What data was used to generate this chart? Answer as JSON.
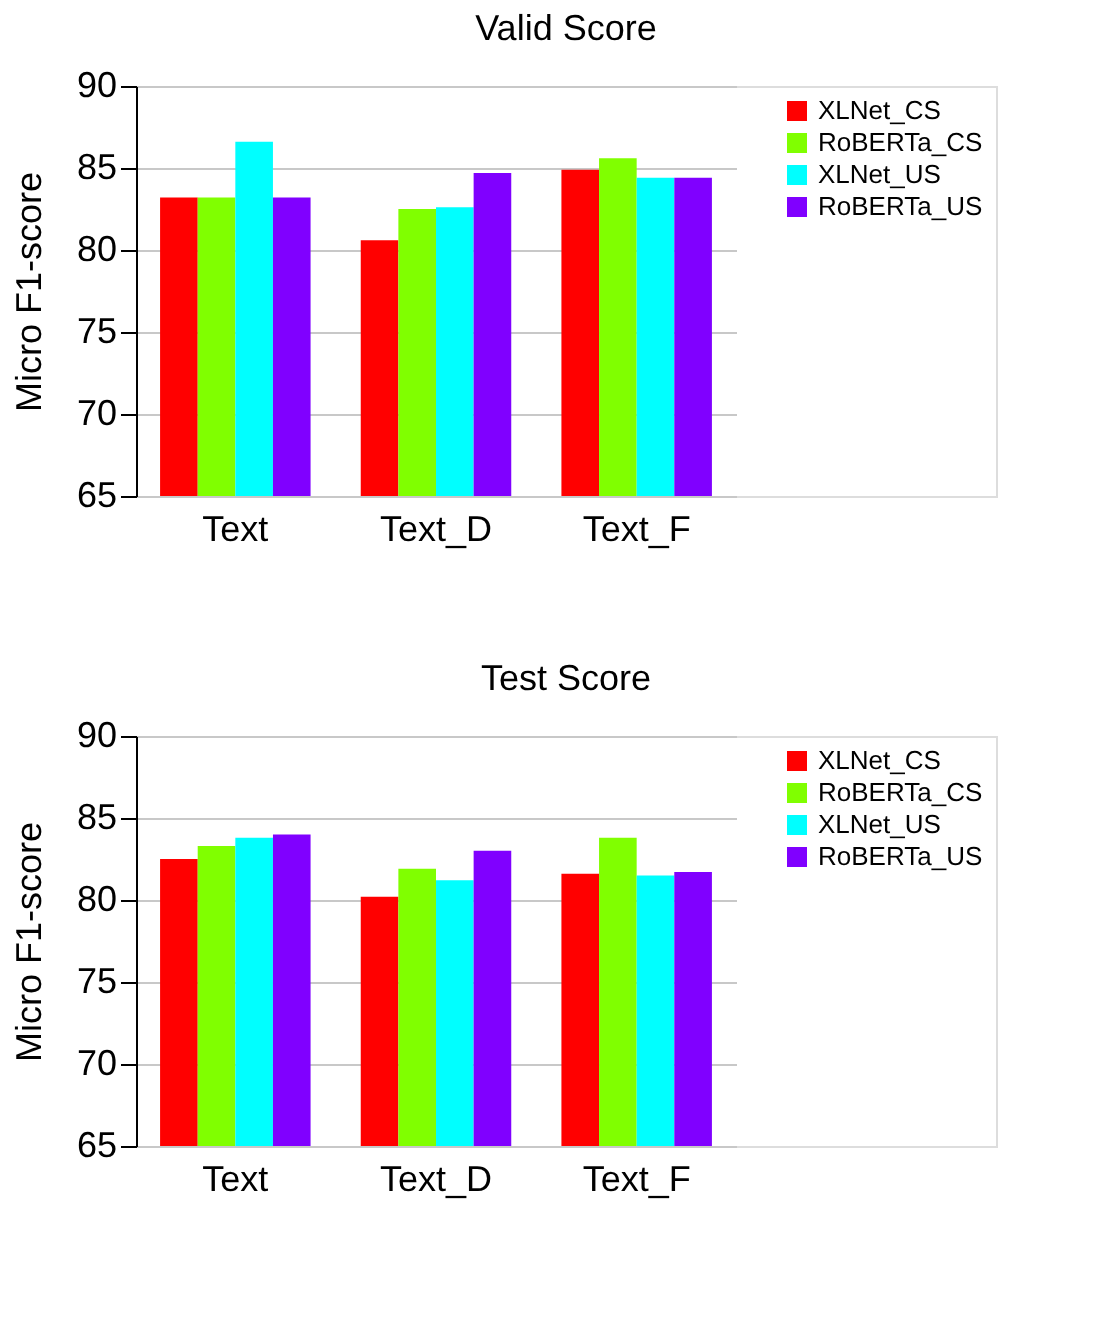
{
  "chart_data": [
    {
      "type": "bar",
      "title": "Valid Score",
      "ylabel": "Micro F1-score",
      "categories": [
        "Text",
        "Text_D",
        "Text_F"
      ],
      "ylim": [
        65,
        90
      ],
      "yticks": [
        65,
        70,
        75,
        80,
        85,
        90
      ],
      "grid": "y",
      "legend": "top right",
      "series": [
        {
          "name": "XLNet_CS",
          "color": "#ff0000",
          "values": [
            83.2,
            80.6,
            84.9
          ]
        },
        {
          "name": "RoBERTa_CS",
          "color": "#80ff00",
          "values": [
            83.2,
            82.5,
            85.6
          ]
        },
        {
          "name": "XLNet_US",
          "color": "#00ffff",
          "values": [
            86.6,
            82.6,
            84.4
          ]
        },
        {
          "name": "RoBERTa_US",
          "color": "#8000ff",
          "values": [
            83.2,
            84.7,
            84.4
          ]
        }
      ]
    },
    {
      "type": "bar",
      "title": "Test Score",
      "ylabel": "Micro F1-score",
      "categories": [
        "Text",
        "Text_D",
        "Text_F"
      ],
      "ylim": [
        65,
        90
      ],
      "yticks": [
        65,
        70,
        75,
        80,
        85,
        90
      ],
      "grid": "y",
      "legend": "top right",
      "series": [
        {
          "name": "XLNet_CS",
          "color": "#ff0000",
          "values": [
            82.5,
            80.2,
            81.6
          ]
        },
        {
          "name": "RoBERTa_CS",
          "color": "#80ff00",
          "values": [
            83.3,
            81.9,
            83.8
          ]
        },
        {
          "name": "XLNet_US",
          "color": "#00ffff",
          "values": [
            83.8,
            81.2,
            81.5
          ]
        },
        {
          "name": "RoBERTa_US",
          "color": "#8000ff",
          "values": [
            84.0,
            83.0,
            81.7
          ]
        }
      ]
    }
  ]
}
